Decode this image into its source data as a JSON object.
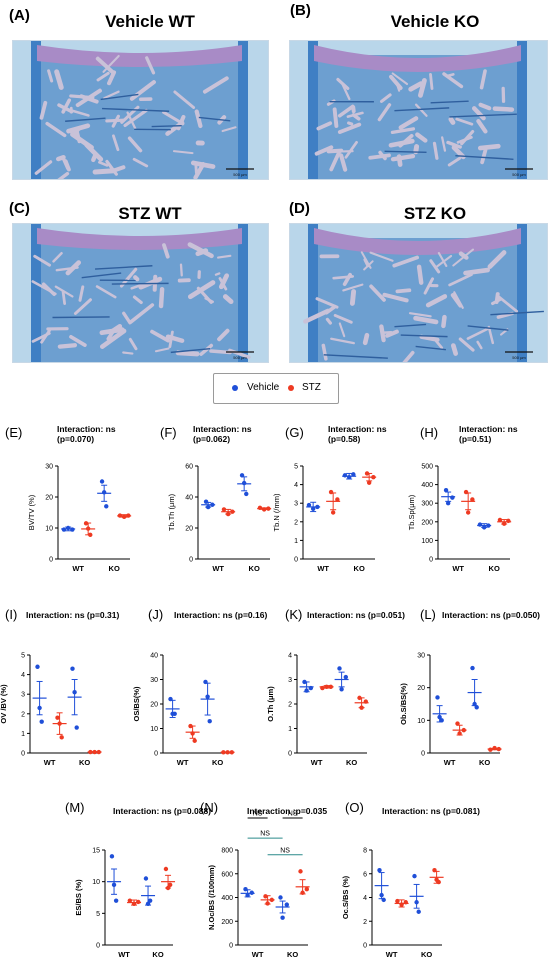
{
  "image_panels": [
    {
      "letter": "(A)",
      "title": "Vehicle WT",
      "scale_bar": "500 µm"
    },
    {
      "letter": "(B)",
      "title": "Vehicle KO",
      "scale_bar": "500 µm"
    },
    {
      "letter": "(C)",
      "title": "STZ WT",
      "scale_bar": "500 µm"
    },
    {
      "letter": "(D)",
      "title": "STZ KO",
      "scale_bar": "500 µm"
    }
  ],
  "legend": {
    "items": [
      {
        "label": "Vehicle",
        "color": "#1f4fd8"
      },
      {
        "label": "STZ",
        "color": "#ee3a22"
      }
    ]
  },
  "colors": {
    "vehicle": "#1f4fd8",
    "stz": "#ee3a22",
    "bracket": "#2a8a8a"
  },
  "chart_data": [
    {
      "letter": "(E)",
      "interaction": [
        "Interaction: ns",
        "(p=0.070)"
      ],
      "type": "scatter",
      "ylabel": "BV/TV (%)",
      "ylim": [
        0,
        30
      ],
      "yticks": [
        0,
        10,
        20,
        30
      ],
      "categories": [
        "WT",
        "KO"
      ],
      "series": [
        {
          "name": "Vehicle",
          "groups": [
            {
              "points": [
                9.5,
                10,
                9.5
              ],
              "mean": 9.7,
              "sem": 0.6
            },
            {
              "points": [
                25,
                21.5,
                17
              ],
              "mean": 21.2,
              "sem": 2.6
            }
          ]
        },
        {
          "name": "STZ",
          "groups": [
            {
              "points": [
                11.5,
                9.8,
                7.8
              ],
              "mean": 9.7,
              "sem": 1.9
            },
            {
              "points": [
                14,
                13.6,
                14
              ],
              "mean": 13.9,
              "sem": 0.4
            }
          ]
        }
      ]
    },
    {
      "letter": "(F)",
      "interaction": [
        "Interaction: ns",
        "(p=0.062)"
      ],
      "type": "scatter",
      "ylabel": "Tb.Th (μm)",
      "ylim": [
        0,
        60
      ],
      "yticks": [
        0,
        20,
        40,
        60
      ],
      "categories": [
        "WT",
        "KO"
      ],
      "series": [
        {
          "name": "Vehicle",
          "groups": [
            {
              "points": [
                37,
                33.5,
                35
              ],
              "mean": 35,
              "sem": 1.5
            },
            {
              "points": [
                54,
                49,
                42
              ],
              "mean": 48.5,
              "sem": 4.5
            }
          ]
        },
        {
          "name": "STZ",
          "groups": [
            {
              "points": [
                32,
                29,
                30.5
              ],
              "mean": 30.5,
              "sem": 1.5
            },
            {
              "points": [
                33,
                32,
                32.5
              ],
              "mean": 32.5,
              "sem": 0.5
            }
          ]
        }
      ]
    },
    {
      "letter": "(G)",
      "interaction": [
        "Interaction: ns",
        "(p=0.58)"
      ],
      "type": "scatter",
      "ylabel": "Tb.N (/mm)",
      "ylim": [
        0,
        5
      ],
      "yticks": [
        0,
        1,
        2,
        3,
        4,
        5
      ],
      "categories": [
        "WT",
        "KO"
      ],
      "series": [
        {
          "name": "Vehicle",
          "groups": [
            {
              "points": [
                2.9,
                2.7,
                2.8
              ],
              "mean": 2.8,
              "sem": 0.25
            },
            {
              "points": [
                4.5,
                4.4,
                4.55
              ],
              "mean": 4.45,
              "sem": 0.15
            }
          ]
        },
        {
          "name": "STZ",
          "groups": [
            {
              "points": [
                3.6,
                2.5,
                3.2
              ],
              "mean": 3.1,
              "sem": 0.45
            },
            {
              "points": [
                4.6,
                4.1,
                4.4
              ],
              "mean": 4.4,
              "sem": 0.2
            }
          ]
        }
      ]
    },
    {
      "letter": "(H)",
      "interaction": [
        "Interaction: ns",
        "(p=0.51)"
      ],
      "type": "scatter",
      "ylabel": "Tb.Sp(μm)",
      "ylim": [
        0,
        500
      ],
      "yticks": [
        0,
        100,
        200,
        300,
        400,
        500
      ],
      "categories": [
        "WT",
        "KO"
      ],
      "series": [
        {
          "name": "Vehicle",
          "groups": [
            {
              "points": [
                370,
                300,
                330
              ],
              "mean": 335,
              "sem": 25
            },
            {
              "points": [
                185,
                170,
                180
              ],
              "mean": 180,
              "sem": 10
            }
          ]
        },
        {
          "name": "STZ",
          "groups": [
            {
              "points": [
                360,
                250,
                320
              ],
              "mean": 310,
              "sem": 45
            },
            {
              "points": [
                210,
                190,
                205
              ],
              "mean": 200,
              "sem": 12
            }
          ]
        }
      ]
    },
    {
      "letter": "(I)",
      "interaction": [
        "Interaction: ns (p=0.31)"
      ],
      "type": "scatter",
      "ylabel": "OV /BV (%)",
      "ylim": [
        0,
        5
      ],
      "yticks": [
        0,
        1,
        2,
        3,
        4,
        5
      ],
      "categories": [
        "WT",
        "KO"
      ],
      "series": [
        {
          "name": "Vehicle",
          "groups": [
            {
              "points": [
                4.4,
                2.3,
                1.6
              ],
              "mean": 2.8,
              "sem": 0.85
            },
            {
              "points": [
                4.3,
                3.1,
                1.3
              ],
              "mean": 2.85,
              "sem": 0.9
            }
          ]
        },
        {
          "name": "STZ",
          "groups": [
            {
              "points": [
                1.8,
                1.5,
                0.8
              ],
              "mean": 1.5,
              "sem": 0.55
            },
            {
              "points": [
                0.05,
                0.05,
                0.05
              ],
              "mean": 0.05,
              "sem": 0.02
            }
          ]
        }
      ]
    },
    {
      "letter": "(J)",
      "interaction": [
        "Interaction: ns (p=0.16)"
      ],
      "type": "scatter",
      "ylabel": "OS/BS(%)",
      "ylim": [
        0,
        40
      ],
      "yticks": [
        0,
        10,
        20,
        30,
        40
      ],
      "categories": [
        "WT",
        "KO"
      ],
      "series": [
        {
          "name": "Vehicle",
          "groups": [
            {
              "points": [
                22,
                16,
                16
              ],
              "mean": 18,
              "sem": 3.5
            },
            {
              "points": [
                29,
                23,
                13
              ],
              "mean": 22,
              "sem": 6.5
            }
          ]
        },
        {
          "name": "STZ",
          "groups": [
            {
              "points": [
                11,
                8,
                5
              ],
              "mean": 8.5,
              "sem": 2.5
            },
            {
              "points": [
                0.3,
                0.3,
                0.3
              ],
              "mean": 0.3,
              "sem": 0.1
            }
          ]
        }
      ]
    },
    {
      "letter": "(K)",
      "interaction": [
        "Interaction: ns (p=0.051)"
      ],
      "type": "scatter",
      "ylabel": "O.Th (μm)",
      "ylim": [
        0,
        4
      ],
      "yticks": [
        0,
        1,
        2,
        3,
        4
      ],
      "categories": [
        "WT",
        "KO"
      ],
      "series": [
        {
          "name": "Vehicle",
          "groups": [
            {
              "points": [
                2.9,
                2.55,
                2.65
              ],
              "mean": 2.7,
              "sem": 0.2
            },
            {
              "points": [
                3.45,
                2.6,
                3.1
              ],
              "mean": 3.0,
              "sem": 0.3
            }
          ]
        },
        {
          "name": "STZ",
          "groups": [
            {
              "points": [
                2.65,
                2.7,
                2.7
              ],
              "mean": 2.7,
              "sem": 0.05
            },
            {
              "points": [
                2.25,
                1.85,
                2.1
              ],
              "mean": 2.05,
              "sem": 0.2
            }
          ]
        }
      ]
    },
    {
      "letter": "(L)",
      "interaction": [
        "Interaction: ns (p=0.050)"
      ],
      "type": "scatter",
      "ylabel": "Ob.S/BS(%)",
      "ylim": [
        0,
        30
      ],
      "yticks": [
        0,
        10,
        20,
        30
      ],
      "categories": [
        "WT",
        "KO"
      ],
      "series": [
        {
          "name": "Vehicle",
          "groups": [
            {
              "points": [
                17,
                11,
                10
              ],
              "mean": 12,
              "sem": 2.5
            },
            {
              "points": [
                26,
                15,
                14
              ],
              "mean": 18.5,
              "sem": 4
            }
          ]
        },
        {
          "name": "STZ",
          "groups": [
            {
              "points": [
                9,
                6,
                7
              ],
              "mean": 7,
              "sem": 1.5
            },
            {
              "points": [
                1,
                1.5,
                1.2
              ],
              "mean": 1.2,
              "sem": 0.2
            }
          ]
        }
      ]
    },
    {
      "letter": "(M)",
      "interaction": [
        "Interaction: ns (p=0.088)"
      ],
      "type": "scatter",
      "ylabel": "ES/BS (%)",
      "ylim": [
        0,
        15
      ],
      "yticks": [
        0,
        5,
        10,
        15
      ],
      "categories": [
        "WT",
        "KO"
      ],
      "series": [
        {
          "name": "Vehicle",
          "groups": [
            {
              "points": [
                14,
                9.5,
                7
              ],
              "mean": 10,
              "sem": 2
            },
            {
              "points": [
                10.5,
                6.5,
                7
              ],
              "mean": 7.8,
              "sem": 1.5
            }
          ]
        },
        {
          "name": "STZ",
          "groups": [
            {
              "points": [
                7,
                6.5,
                6.8
              ],
              "mean": 6.7,
              "sem": 0.4
            },
            {
              "points": [
                12,
                9,
                9.5
              ],
              "mean": 10,
              "sem": 1
            }
          ]
        }
      ]
    },
    {
      "letter": "(N)",
      "interaction": [
        "Interaction :p=0.035"
      ],
      "type": "scatter",
      "ylabel": "N.Oc/BS (/100mm)",
      "ylim": [
        0,
        800
      ],
      "yticks": [
        0,
        200,
        400,
        600,
        800
      ],
      "categories": [
        "WT",
        "KO"
      ],
      "brackets": [
        {
          "label": "NS",
          "from": 0,
          "to": 1,
          "y": 1070
        },
        {
          "label": "NS",
          "from": 2,
          "to": 3,
          "y": 1070
        },
        {
          "label": "NS",
          "from": 0,
          "to": 2,
          "y": 900
        },
        {
          "label": "NS",
          "from": 1,
          "to": 3,
          "y": 760
        }
      ],
      "series": [
        {
          "name": "Vehicle",
          "groups": [
            {
              "points": [
                470,
                420,
                440
              ],
              "mean": 435,
              "sem": 30
            },
            {
              "points": [
                400,
                230,
                340
              ],
              "mean": 320,
              "sem": 50
            }
          ]
        },
        {
          "name": "STZ",
          "groups": [
            {
              "points": [
                410,
                350,
                380
              ],
              "mean": 380,
              "sem": 35
            },
            {
              "points": [
                620,
                440,
                470
              ],
              "mean": 490,
              "sem": 60
            }
          ]
        }
      ]
    },
    {
      "letter": "(O)",
      "interaction": [
        "Interaction: ns (p=0.081)"
      ],
      "type": "scatter",
      "ylabel": "Oc.S/BS (%)",
      "ylim": [
        0,
        8
      ],
      "yticks": [
        0,
        2,
        4,
        6,
        8
      ],
      "categories": [
        "WT",
        "KO"
      ],
      "series": [
        {
          "name": "Vehicle",
          "groups": [
            {
              "points": [
                6.3,
                4.2,
                3.8
              ],
              "mean": 5.0,
              "sem": 1.1
            },
            {
              "points": [
                5.8,
                3.6,
                2.8
              ],
              "mean": 4.1,
              "sem": 1.0
            }
          ]
        },
        {
          "name": "STZ",
          "groups": [
            {
              "points": [
                3.7,
                3.4,
                3.6
              ],
              "mean": 3.5,
              "sem": 0.3
            },
            {
              "points": [
                6.3,
                5.5,
                5.3
              ],
              "mean": 5.7,
              "sem": 0.5
            }
          ]
        }
      ]
    }
  ]
}
